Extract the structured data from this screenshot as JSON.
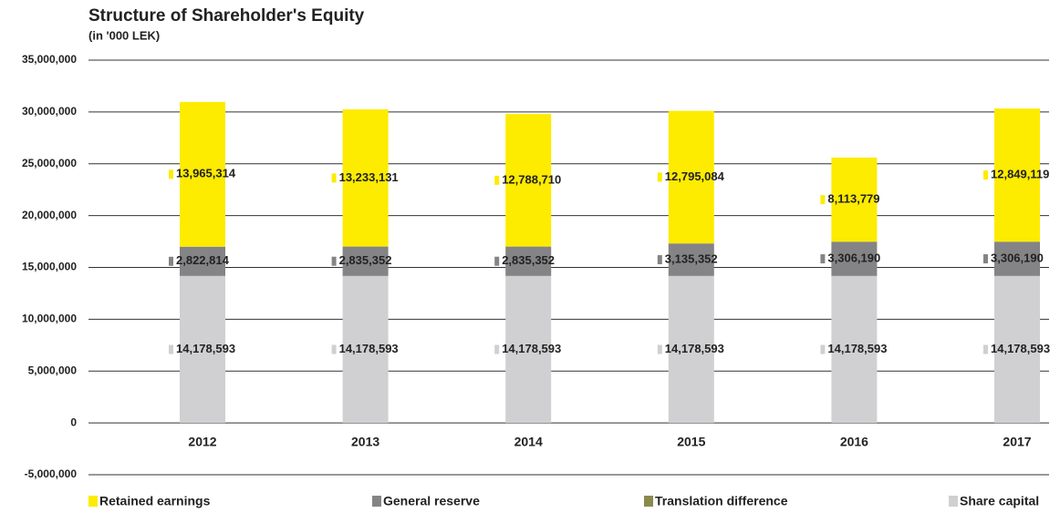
{
  "chart_data": {
    "type": "stacked_bar",
    "title": "Structure of Shareholder's Equity",
    "subtitle": "(in '000 LEK)",
    "categories": [
      "2012",
      "2013",
      "2014",
      "2015",
      "2016",
      "2017"
    ],
    "series": [
      {
        "name": "Share capital",
        "color": "#d0d0d2",
        "values": [
          14178593,
          14178593,
          14178593,
          14178593,
          14178593,
          14178593
        ],
        "value_labels": [
          "14,178,593",
          "14,178,593",
          "14,178,593",
          "14,178,593",
          "14,178,593",
          "14,178,593"
        ]
      },
      {
        "name": "Translation difference",
        "color": "#8a8a4e",
        "values": [
          0,
          0,
          0,
          0,
          0,
          0
        ]
      },
      {
        "name": "General reserve",
        "color": "#848486",
        "values": [
          2822814,
          2835352,
          2835352,
          3135352,
          3306190,
          3306190
        ],
        "value_labels": [
          "2,822,814",
          "2,835,352",
          "2,835,352",
          "3,135,352",
          "3,306,190",
          "3,306,190"
        ]
      },
      {
        "name": "Retained earnings",
        "color": "#fdeb00",
        "values": [
          13965314,
          13233131,
          12788710,
          12795084,
          8113779,
          12849119
        ],
        "value_labels": [
          "13,965,314",
          "13,233,131",
          "12,788,710",
          "12,795,084",
          "8,113,779",
          "12,849,119"
        ]
      }
    ],
    "ylim": [
      -5000000,
      35000000
    ],
    "yticks": [
      {
        "value": -5000000,
        "label": "-5,000,000"
      },
      0,
      {
        "value": 5000000,
        "label": "5,000,000"
      },
      {
        "value": 10000000,
        "label": "10,000,000"
      },
      {
        "value": 15000000,
        "label": "15,000,000"
      },
      {
        "value": 20000000,
        "label": "20,000,000"
      },
      {
        "value": 25000000,
        "label": "25,000,000"
      },
      {
        "value": 30000000,
        "label": "30,000,000"
      },
      {
        "value": 35000000,
        "label": "35,000,000"
      }
    ],
    "grid": true,
    "legend_order": [
      "Retained earnings",
      "General reserve",
      "Translation difference",
      "Share capital"
    ]
  }
}
